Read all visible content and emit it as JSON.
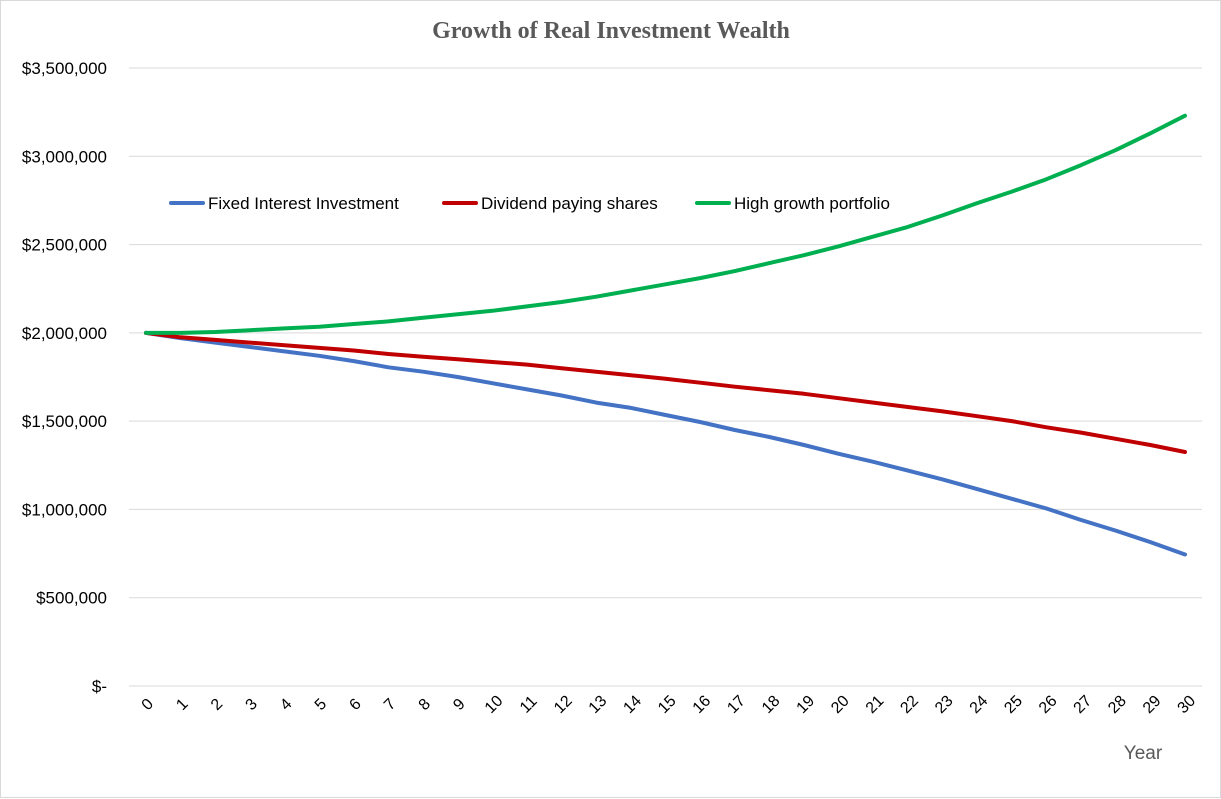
{
  "chart_data": {
    "type": "line",
    "title": "Growth of Real Investment Wealth",
    "xlabel": "Year",
    "ylabel": "",
    "x": [
      0,
      1,
      2,
      3,
      4,
      5,
      6,
      7,
      8,
      9,
      10,
      11,
      12,
      13,
      14,
      15,
      16,
      17,
      18,
      19,
      20,
      21,
      22,
      23,
      24,
      25,
      26,
      27,
      28,
      29,
      30
    ],
    "ylim": [
      0,
      3500000
    ],
    "yticks": [
      0,
      500000,
      1000000,
      1500000,
      2000000,
      2500000,
      3000000,
      3500000
    ],
    "ytick_labels": [
      "$-",
      "$500,000",
      "$1,000,000",
      "$1,500,000",
      "$2,000,000",
      "$2,500,000",
      "$3,000,000",
      "$3,500,000"
    ],
    "grid": true,
    "legend_position": "top-left",
    "series": [
      {
        "name": "Fixed Interest Investment",
        "color": "#4472c4",
        "values": [
          2000000,
          1970000,
          1945000,
          1920000,
          1895000,
          1870000,
          1840000,
          1805000,
          1780000,
          1750000,
          1715000,
          1680000,
          1645000,
          1605000,
          1575000,
          1535000,
          1495000,
          1450000,
          1410000,
          1365000,
          1315000,
          1270000,
          1220000,
          1170000,
          1115000,
          1060000,
          1005000,
          940000,
          880000,
          815000,
          745000
        ]
      },
      {
        "name": "Dividend paying shares",
        "color": "#c00000",
        "values": [
          2000000,
          1975000,
          1960000,
          1945000,
          1930000,
          1915000,
          1900000,
          1880000,
          1865000,
          1850000,
          1835000,
          1820000,
          1800000,
          1780000,
          1760000,
          1740000,
          1718000,
          1695000,
          1675000,
          1655000,
          1630000,
          1605000,
          1580000,
          1555000,
          1528000,
          1500000,
          1465000,
          1435000,
          1400000,
          1365000,
          1325000
        ]
      },
      {
        "name": "High growth portfolio",
        "color": "#00b050",
        "values": [
          2000000,
          2000000,
          2005000,
          2015000,
          2025000,
          2035000,
          2050000,
          2065000,
          2085000,
          2105000,
          2125000,
          2150000,
          2175000,
          2205000,
          2240000,
          2275000,
          2310000,
          2350000,
          2395000,
          2440000,
          2490000,
          2545000,
          2600000,
          2665000,
          2735000,
          2800000,
          2870000,
          2950000,
          3035000,
          3130000,
          3230000
        ]
      }
    ]
  }
}
